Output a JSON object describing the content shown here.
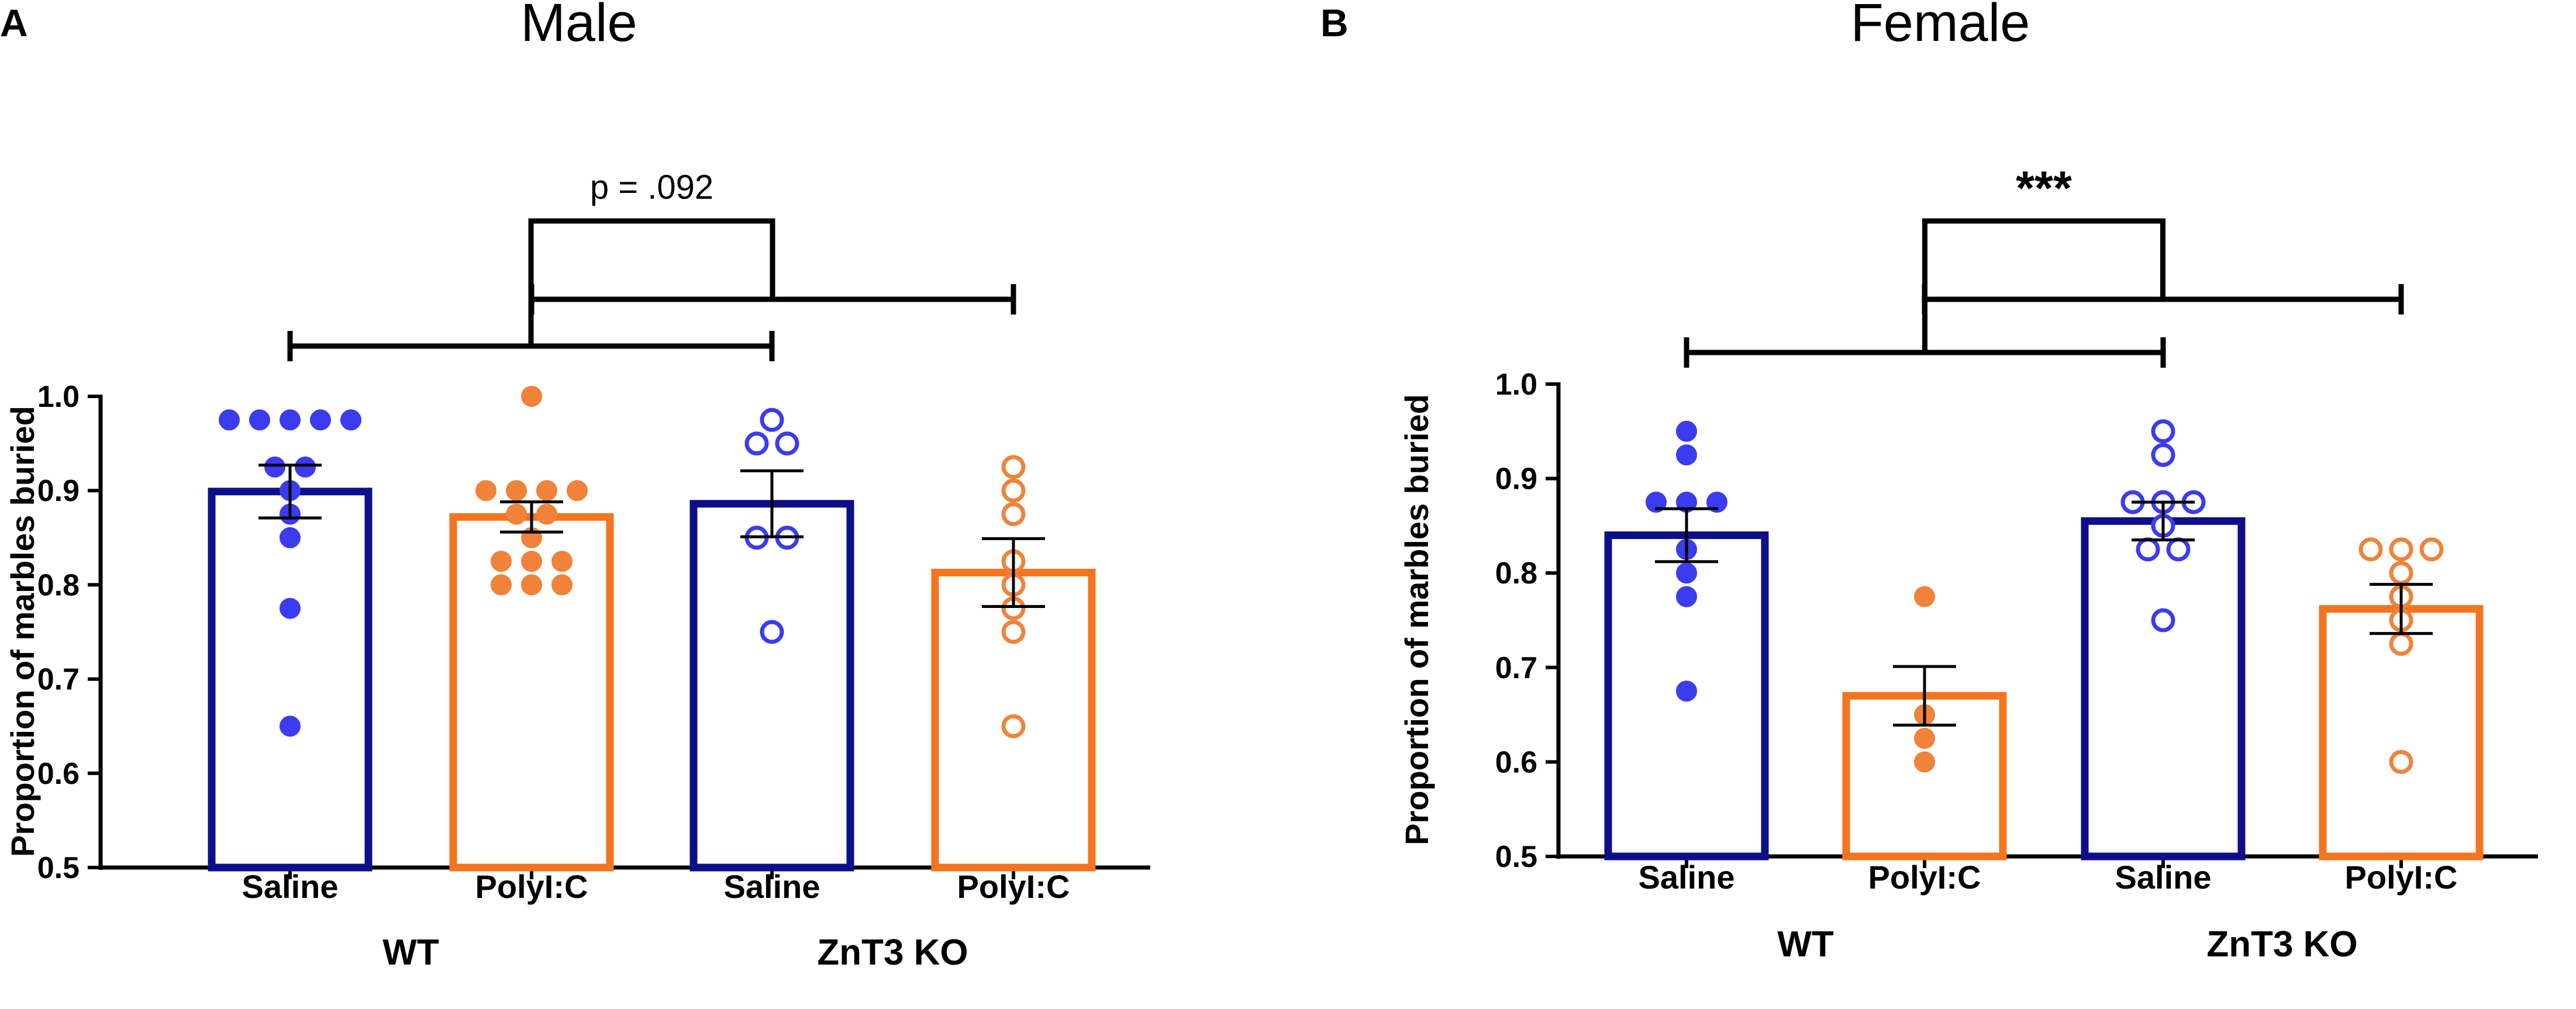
{
  "chart_data": [
    {
      "type": "bar",
      "panel_label": "A",
      "title": "Male",
      "ylabel": "Proportion of marbles buried",
      "ylim": [
        0.5,
        1.0
      ],
      "yticks": [
        "0.5",
        "0.6",
        "0.7",
        "0.8",
        "0.9",
        "1.0"
      ],
      "categories": [
        "Saline",
        "PolyI:C",
        "Saline",
        "PolyI:C"
      ],
      "groups": [
        {
          "label": "WT",
          "categories": [
            0,
            1
          ]
        },
        {
          "label": "ZnT3 KO",
          "categories": [
            2,
            3
          ]
        }
      ],
      "significance": "p = .092",
      "series": [
        {
          "name": "WT Saline",
          "mean": 0.899,
          "sem": 0.028,
          "color": "#0d0f8a",
          "dot_color": "#3b3bf0",
          "filled": true,
          "points": [
            0.975,
            0.975,
            0.975,
            0.975,
            0.975,
            0.925,
            0.925,
            0.9,
            0.875,
            0.85,
            0.775,
            0.65
          ]
        },
        {
          "name": "WT PolyI:C",
          "mean": 0.872,
          "sem": 0.016,
          "color": "#f5741f",
          "dot_color": "#f0823a",
          "filled": true,
          "points": [
            1.0,
            0.9,
            0.9,
            0.9,
            0.9,
            0.875,
            0.875,
            0.85,
            0.825,
            0.825,
            0.825,
            0.8,
            0.8,
            0.8
          ]
        },
        {
          "name": "ZnT3 KO Saline",
          "mean": 0.886,
          "sem": 0.035,
          "color": "#0d0f8a",
          "dot_color": "#3b3bf0",
          "filled": false,
          "points": [
            0.975,
            0.95,
            0.95,
            0.85,
            0.85,
            0.75
          ]
        },
        {
          "name": "ZnT3 KO PolyI:C",
          "mean": 0.813,
          "sem": 0.036,
          "color": "#f5741f",
          "dot_color": "#f0823a",
          "filled": false,
          "points": [
            0.925,
            0.9,
            0.875,
            0.825,
            0.8,
            0.775,
            0.75,
            0.65
          ]
        }
      ]
    },
    {
      "type": "bar",
      "panel_label": "B",
      "title": "Female",
      "ylabel": "Proportion of marbles buried",
      "ylim": [
        0.5,
        1.0
      ],
      "yticks": [
        "0.5",
        "0.6",
        "0.7",
        "0.8",
        "0.9",
        "1.0"
      ],
      "categories": [
        "Saline",
        "PolyI:C",
        "Saline",
        "PolyI:C"
      ],
      "groups": [
        {
          "label": "WT",
          "categories": [
            0,
            1
          ]
        },
        {
          "label": "ZnT3 KO",
          "categories": [
            2,
            3
          ]
        }
      ],
      "significance": "***",
      "series": [
        {
          "name": "WT Saline",
          "mean": 0.84,
          "sem": 0.028,
          "color": "#0d0f8a",
          "dot_color": "#3b3bf0",
          "filled": true,
          "points": [
            0.95,
            0.925,
            0.875,
            0.875,
            0.875,
            0.825,
            0.8,
            0.775,
            0.675
          ]
        },
        {
          "name": "WT PolyI:C",
          "mean": 0.67,
          "sem": 0.031,
          "color": "#f5741f",
          "dot_color": "#f0823a",
          "filled": true,
          "points": [
            0.775,
            0.65,
            0.625,
            0.6
          ]
        },
        {
          "name": "ZnT3 KO Saline",
          "mean": 0.855,
          "sem": 0.02,
          "color": "#0d0f8a",
          "dot_color": "#3b3bf0",
          "filled": false,
          "points": [
            0.95,
            0.925,
            0.875,
            0.875,
            0.875,
            0.85,
            0.825,
            0.825,
            0.75
          ]
        },
        {
          "name": "ZnT3 KO PolyI:C",
          "mean": 0.762,
          "sem": 0.026,
          "color": "#f5741f",
          "dot_color": "#f0823a",
          "filled": false,
          "points": [
            0.825,
            0.825,
            0.825,
            0.8,
            0.775,
            0.75,
            0.725,
            0.6
          ]
        }
      ]
    }
  ]
}
